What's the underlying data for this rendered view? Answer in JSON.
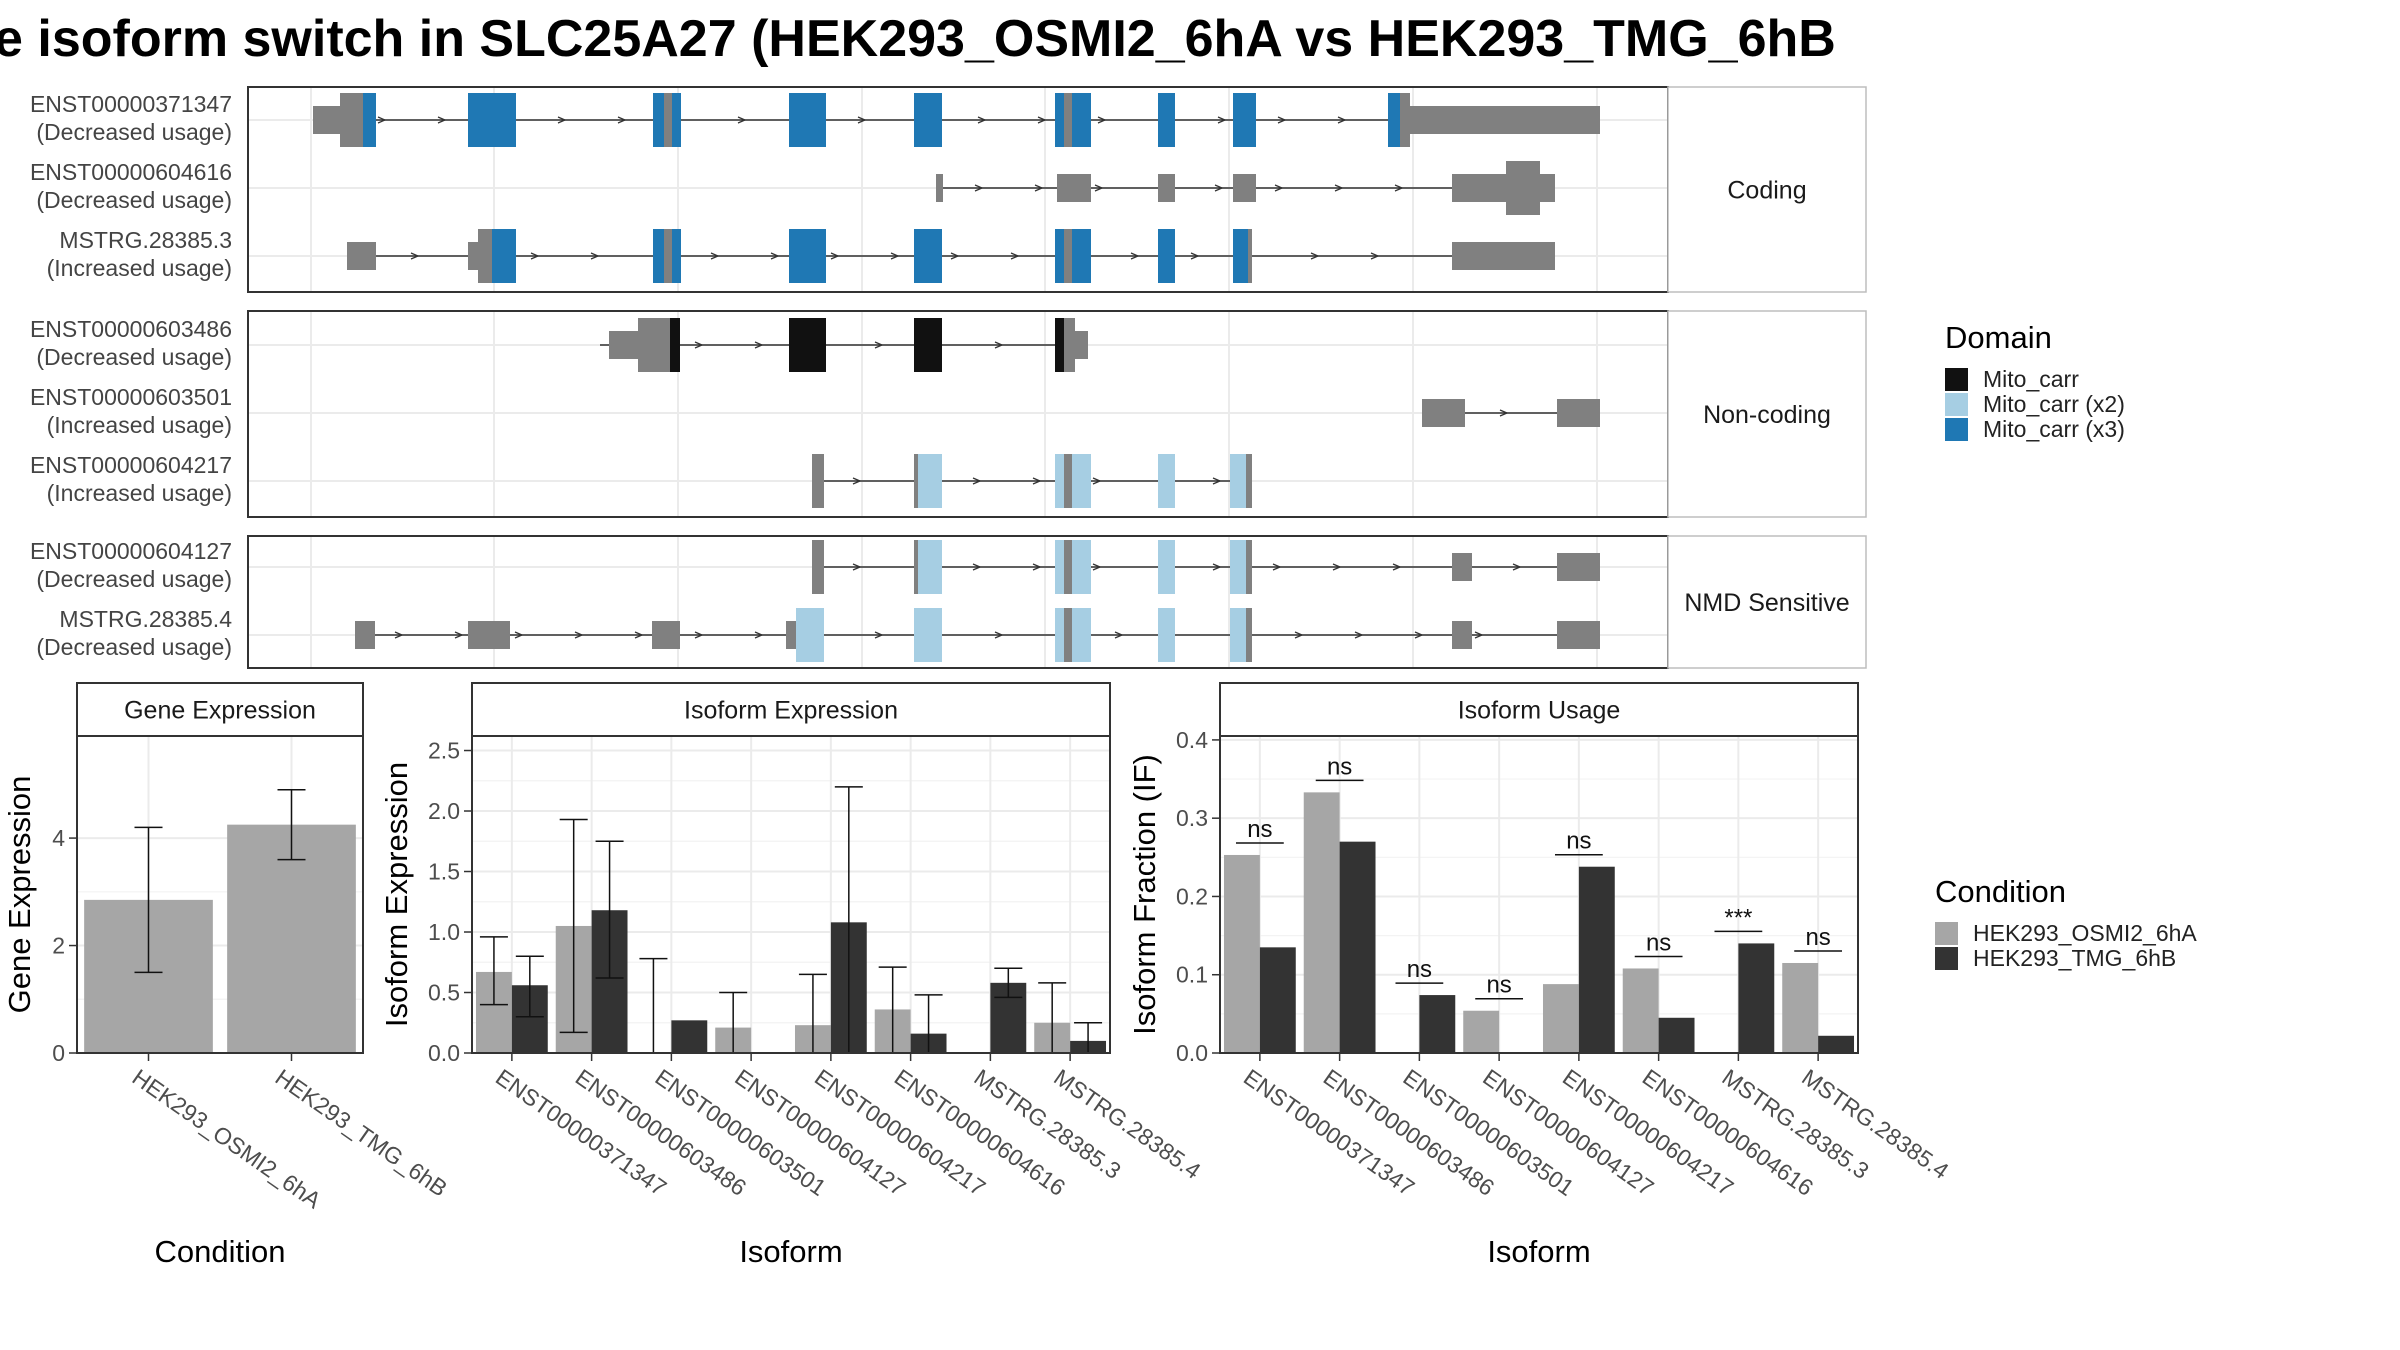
{
  "title": "e isoform switch in SLC25A27 (HEK293_OSMI2_6hA vs HEK293_TMG_6hB",
  "colors": {
    "exon": "#808080",
    "mito_carr": "#111111",
    "mito_carr_x2": "#a6cee3",
    "mito_carr_x3": "#1f78b4",
    "cond_a": "#a6a6a6",
    "cond_b": "#333333",
    "strip_bg": "#ffffff",
    "grid": "#ebebeb"
  },
  "structure": {
    "panels": [
      {
        "label": "Coding",
        "isoforms": [
          {
            "name": "ENST00000371347",
            "usage": "(Decreased usage)"
          },
          {
            "name": "ENST00000604616",
            "usage": "(Decreased usage)"
          },
          {
            "name": "MSTRG.28385.3",
            "usage": "(Increased usage)"
          }
        ]
      },
      {
        "label": "Non-coding",
        "isoforms": [
          {
            "name": "ENST00000603486",
            "usage": "(Decreased usage)"
          },
          {
            "name": "ENST00000603501",
            "usage": "(Increased usage)"
          },
          {
            "name": "ENST00000604217",
            "usage": "(Increased usage)"
          }
        ]
      },
      {
        "label": "NMD Sensitive",
        "isoforms": [
          {
            "name": "ENST00000604127",
            "usage": "(Decreased usage)"
          },
          {
            "name": "MSTRG.28385.4",
            "usage": "(Decreased usage)"
          }
        ]
      }
    ]
  },
  "legend_domain": {
    "title": "Domain",
    "items": [
      {
        "label": "Mito_carr",
        "color": "#111111"
      },
      {
        "label": "Mito_carr (x2)",
        "color": "#a6cee3"
      },
      {
        "label": "Mito_carr (x3)",
        "color": "#1f78b4"
      }
    ]
  },
  "legend_condition": {
    "title": "Condition",
    "items": [
      {
        "label": "HEK293_OSMI2_6hA",
        "color": "#a6a6a6"
      },
      {
        "label": "HEK293_TMG_6hB",
        "color": "#333333"
      }
    ]
  },
  "chart_data": [
    {
      "type": "bar",
      "title": "Gene Expression",
      "xlabel": "Condition",
      "ylabel": "Gene Expression",
      "categories": [
        "HEK293_OSMI2_6hA",
        "HEK293_TMG_6hB"
      ],
      "values": [
        2.85,
        4.25
      ],
      "error_low": [
        1.5,
        3.6
      ],
      "error_high": [
        4.2,
        4.9
      ],
      "yticks": [
        0,
        2,
        4
      ],
      "ylim": [
        0,
        5.9
      ]
    },
    {
      "type": "bar",
      "title": "Isoform Expression",
      "xlabel": "Isoform",
      "ylabel": "Isoform Expression",
      "categories": [
        "ENST00000371347",
        "ENST00000603486",
        "ENST00000603501",
        "ENST00000604127",
        "ENST00000604217",
        "ENST00000604616",
        "MSTRG.28385.3",
        "MSTRG.28385.4"
      ],
      "series": [
        {
          "name": "HEK293_OSMI2_6hA",
          "values": [
            0.67,
            1.05,
            0.0,
            0.21,
            0.23,
            0.36,
            0.0,
            0.25
          ],
          "error_low": [
            0.4,
            0.17,
            0.0,
            0.0,
            0.0,
            0.0,
            0.0,
            0.0
          ],
          "error_high": [
            0.96,
            1.93,
            0.78,
            0.5,
            0.65,
            0.71,
            0.0,
            0.58
          ]
        },
        {
          "name": "HEK293_TMG_6hB",
          "values": [
            0.56,
            1.18,
            0.27,
            0.0,
            1.08,
            0.16,
            0.58,
            0.1
          ],
          "error_low": [
            0.3,
            0.62,
            0.0,
            0.0,
            0.0,
            0.0,
            0.46,
            0.0
          ],
          "error_high": [
            0.8,
            1.75,
            0.0,
            0.0,
            2.2,
            0.48,
            0.7,
            0.25
          ]
        }
      ],
      "yticks": [
        0.0,
        0.5,
        1.0,
        1.5,
        2.0,
        2.5
      ],
      "ytick_labels": [
        "0.0",
        "0.5",
        "1.0",
        "1.5",
        "2.0",
        "2.5"
      ],
      "ylim": [
        0,
        2.62
      ]
    },
    {
      "type": "bar",
      "title": "Isoform Usage",
      "xlabel": "Isoform",
      "ylabel": "Isoform Fraction (IF)",
      "categories": [
        "ENST00000371347",
        "ENST00000603486",
        "ENST00000603501",
        "ENST00000604127",
        "ENST00000604217",
        "ENST00000604616",
        "MSTRG.28385.3",
        "MSTRG.28385.4"
      ],
      "series": [
        {
          "name": "HEK293_OSMI2_6hA",
          "values": [
            0.253,
            0.333,
            0.0,
            0.054,
            0.088,
            0.108,
            0.0,
            0.115
          ]
        },
        {
          "name": "HEK293_TMG_6hB",
          "values": [
            0.135,
            0.27,
            0.074,
            0.0,
            0.238,
            0.045,
            0.14,
            0.022
          ]
        }
      ],
      "significance": [
        "ns",
        "ns",
        "ns",
        "ns",
        "ns",
        "ns",
        "***",
        "ns"
      ],
      "yticks": [
        0.0,
        0.1,
        0.2,
        0.3,
        0.4
      ],
      "ytick_labels": [
        "0.0",
        "0.1",
        "0.2",
        "0.3",
        "0.4"
      ],
      "ylim": [
        0,
        0.405
      ]
    }
  ]
}
